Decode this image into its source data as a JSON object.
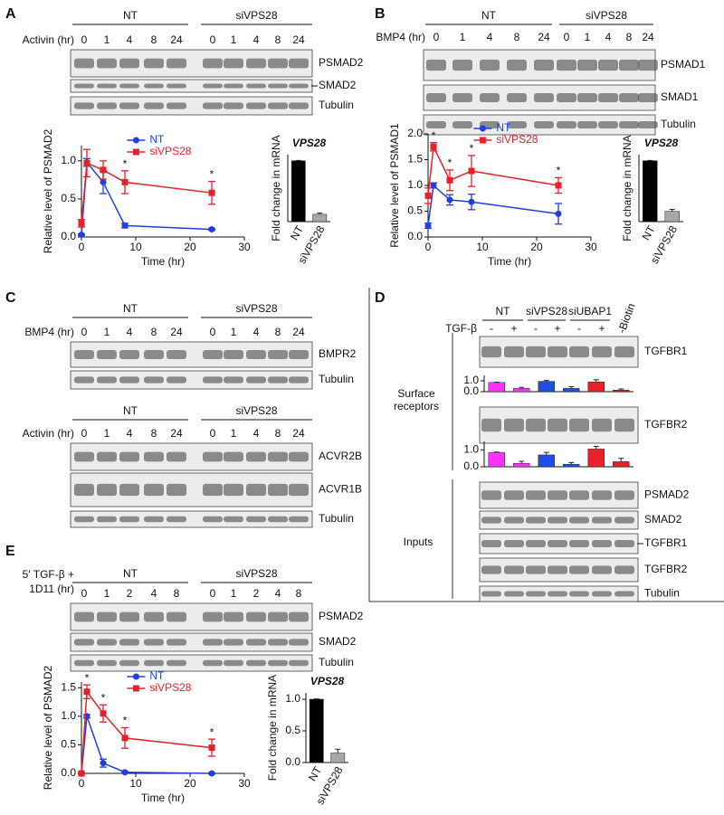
{
  "figure": {
    "A": {
      "label": "A",
      "groups": [
        "NT",
        "siVPS28"
      ],
      "treatment": "Activin (hr)",
      "lanes": [
        "0",
        "1",
        "4",
        "8",
        "24",
        "0",
        "1",
        "4",
        "8",
        "24"
      ],
      "blots": [
        "PSMAD2",
        "SMAD2",
        "Tubulin"
      ]
    },
    "B": {
      "label": "B",
      "groups": [
        "NT",
        "siVPS28"
      ],
      "treatment": "BMP4 (hr)",
      "lanes": [
        "0",
        "1",
        "4",
        "8",
        "24",
        "0",
        "1",
        "4",
        "8",
        "24"
      ],
      "blots": [
        "PSMAD1",
        "SMAD1",
        "Tubulin"
      ]
    },
    "C": {
      "label": "C",
      "sets": [
        {
          "groups": [
            "NT",
            "siVPS28"
          ],
          "treatment": "BMP4 (hr)",
          "lanes": [
            "0",
            "1",
            "4",
            "8",
            "24",
            "0",
            "1",
            "4",
            "8",
            "24"
          ],
          "blots": [
            "BMPR2",
            "Tubulin"
          ]
        },
        {
          "groups": [
            "NT",
            "siVPS28"
          ],
          "treatment": "Activin (hr)",
          "lanes": [
            "0",
            "1",
            "4",
            "8",
            "24",
            "0",
            "1",
            "4",
            "8",
            "24"
          ],
          "blots": [
            "ACVR2B",
            "ACVR1B",
            "Tubulin"
          ]
        }
      ]
    },
    "D": {
      "label": "D",
      "groups": [
        "NT",
        "siVPS28",
        "siUBAP1"
      ],
      "control": "-Biotin",
      "treatment": "TGF-β",
      "lanes": [
        "-",
        "+",
        "-",
        "+",
        "-",
        "+"
      ],
      "surface_label": "Surface receptors",
      "surface_blots": [
        "TGFBR1",
        "TGFBR2"
      ],
      "inputs_label": "Inputs",
      "input_blots": [
        "PSMAD2",
        "SMAD2",
        "TGFBR1",
        "TGFBR2",
        "Tubulin"
      ]
    },
    "E": {
      "label": "E",
      "groups": [
        "NT",
        "siVPS28"
      ],
      "treatment": [
        "5' TGF-β +",
        "1D11 (hr)"
      ],
      "lanes": [
        "0",
        "1",
        "2",
        "4",
        "8",
        "0",
        "1",
        "2",
        "4",
        "8"
      ],
      "blots": [
        "PSMAD2",
        "SMAD2",
        "Tubulin"
      ]
    }
  },
  "chart_data": [
    {
      "type": "line",
      "xlabel": "Time (hr)",
      "ylabel": "Relative level of PSMAD2",
      "x": [
        0,
        1,
        4,
        8,
        24
      ],
      "series": [
        {
          "name": "NT",
          "color": "#1f3fe0",
          "marker": "circle",
          "values": [
            0.03,
            0.98,
            0.72,
            0.15,
            0.1
          ],
          "errors": [
            0.01,
            0.05,
            0.15,
            0.03,
            0.01
          ]
        },
        {
          "name": "siVPS28",
          "color": "#e8202a",
          "marker": "square",
          "values": [
            0.18,
            0.97,
            0.88,
            0.72,
            0.58
          ],
          "errors": [
            0.05,
            0.18,
            0.12,
            0.15,
            0.15
          ]
        }
      ],
      "xlim": [
        0,
        30
      ],
      "xticks": [
        0,
        10,
        20,
        30
      ],
      "ylim": [
        0,
        1.2
      ],
      "yticks": [
        {
          "value": 0,
          "label": "0.0"
        },
        0.5,
        {
          "value": 1,
          "label": "1.0"
        }
      ],
      "significant_x": [
        8,
        24
      ],
      "significance_label": "*"
    },
    {
      "type": "bar",
      "title": "VPS28",
      "ylabel": "Fold change in mRNA",
      "categories": [
        "NT",
        "siVPS28"
      ],
      "values": [
        1.0,
        0.12
      ],
      "errors": [
        0.005,
        0.02
      ],
      "colors": [
        "#000000",
        "#a6a6a6"
      ],
      "ylim": [
        0,
        1.1
      ]
    },
    {
      "type": "line",
      "xlabel": "Time (hr)",
      "ylabel": "Relative level of PSMAD1",
      "x": [
        0,
        1,
        4,
        8,
        24
      ],
      "series": [
        {
          "name": "NT",
          "color": "#1f3fe0",
          "marker": "circle",
          "values": [
            0.22,
            1.0,
            0.72,
            0.68,
            0.45
          ],
          "errors": [
            0.05,
            0.05,
            0.1,
            0.15,
            0.2
          ]
        },
        {
          "name": "siVPS28",
          "color": "#e8202a",
          "marker": "square",
          "values": [
            0.8,
            1.75,
            1.1,
            1.28,
            1.0
          ],
          "errors": [
            0.15,
            0.08,
            0.2,
            0.3,
            0.15
          ]
        }
      ],
      "xlim": [
        0,
        30
      ],
      "xticks": [
        0,
        10,
        20,
        30
      ],
      "ylim": [
        0,
        2
      ],
      "yticks": [
        {
          "value": 0,
          "label": "0.0"
        },
        0.5,
        {
          "value": 1,
          "label": "1.0"
        },
        1.5,
        {
          "value": 2,
          "label": "2.0"
        }
      ],
      "significant_x": [
        1,
        4,
        8,
        24
      ],
      "significance_label": "*"
    },
    {
      "type": "bar",
      "title": "VPS28",
      "ylabel": "Fold change in mRNA",
      "categories": [
        "NT",
        "siVPS28"
      ],
      "values": [
        1.0,
        0.17
      ],
      "errors": [
        0.005,
        0.03
      ],
      "colors": [
        "#000000",
        "#a6a6a6"
      ],
      "ylim": [
        0,
        1.1
      ]
    },
    {
      "type": "bar",
      "categories": [
        null,
        null,
        null,
        null,
        null,
        null
      ],
      "values": [
        0.85,
        0.3,
        0.95,
        0.3,
        0.9,
        0.15
      ],
      "errors": [
        0.02,
        0.1,
        0.08,
        0.15,
        0.2,
        0.1
      ],
      "colors": [
        "#ff33ff",
        "#ff33ff",
        "#1f4fe0",
        "#1f4fe0",
        "#e8202a",
        "#e8202a"
      ],
      "ylim": [
        0,
        1.5
      ],
      "yticks": [
        {
          "value": 0,
          "label": "0.0"
        },
        {
          "value": 1,
          "label": "1.0"
        }
      ]
    },
    {
      "type": "bar",
      "categories": [
        null,
        null,
        null,
        null,
        null,
        null
      ],
      "values": [
        0.85,
        0.2,
        0.7,
        0.15,
        1.05,
        0.3
      ],
      "errors": [
        0.02,
        0.12,
        0.15,
        0.1,
        0.15,
        0.2
      ],
      "colors": [
        "#ff33ff",
        "#ff33ff",
        "#1f4fe0",
        "#1f4fe0",
        "#e8202a",
        "#e8202a"
      ],
      "ylim": [
        0,
        1.5
      ],
      "yticks": [
        {
          "value": 0,
          "label": "0.0"
        },
        {
          "value": 1,
          "label": "1.0"
        }
      ]
    },
    {
      "type": "line",
      "xlabel": "Time (hr)",
      "ylabel": "Relative level of PSMAD2",
      "x": [
        0,
        1,
        4,
        8,
        24
      ],
      "series": [
        {
          "name": "NT",
          "color": "#1f3fe0",
          "marker": "circle",
          "values": [
            0.0,
            1.0,
            0.18,
            0.02,
            0.0
          ],
          "errors": [
            0.01,
            0.03,
            0.07,
            0.01,
            0.01
          ]
        },
        {
          "name": "siVPS28",
          "color": "#e8202a",
          "marker": "square",
          "values": [
            0.0,
            1.43,
            1.05,
            0.62,
            0.45
          ],
          "errors": [
            0.01,
            0.12,
            0.15,
            0.18,
            0.15
          ]
        }
      ],
      "xlim": [
        0,
        30
      ],
      "xticks": [
        0,
        10,
        20,
        30
      ],
      "ylim": [
        0,
        1.6
      ],
      "yticks": [
        {
          "value": 0,
          "label": "0.0"
        },
        0.5,
        {
          "value": 1,
          "label": "1.0"
        },
        1.5
      ],
      "significant_x": [
        1,
        4,
        8,
        24
      ],
      "significance_label": "*"
    },
    {
      "type": "bar",
      "title": "VPS28",
      "ylabel": "Fold change in mRNA",
      "categories": [
        "NT",
        "siVPS28"
      ],
      "values": [
        1.0,
        0.15
      ],
      "errors": [
        0.005,
        0.06
      ],
      "colors": [
        "#000000",
        "#a6a6a6"
      ],
      "ylim": [
        0,
        1.1
      ],
      "yticks": [
        {
          "value": 0,
          "label": "0.0"
        },
        0.5,
        {
          "value": 1,
          "label": "1.0"
        }
      ]
    }
  ]
}
